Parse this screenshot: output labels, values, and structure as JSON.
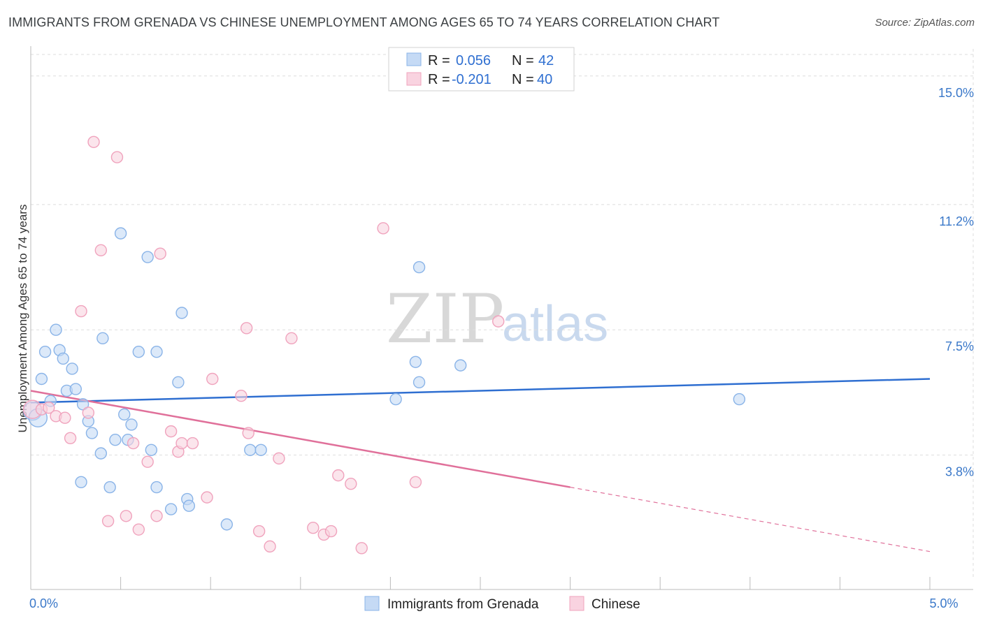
{
  "title": "IMMIGRANTS FROM GRENADA VS CHINESE UNEMPLOYMENT AMONG AGES 65 TO 74 YEARS CORRELATION CHART",
  "source": "Source: ZipAtlas.com",
  "watermark": {
    "zip": "ZIP",
    "atlas": "atlas"
  },
  "legend_top": [
    {
      "r_label": "R = ",
      "r_value": "0.056",
      "n_label": "N = ",
      "n_value": "42"
    },
    {
      "r_label": "R = ",
      "r_value": "-0.201",
      "n_label": "N = ",
      "n_value": "40"
    }
  ],
  "chart_data": {
    "type": "scatter",
    "title": "IMMIGRANTS FROM GRENADA VS CHINESE UNEMPLOYMENT AMONG AGES 65 TO 74 YEARS CORRELATION CHART",
    "xlabel": "",
    "ylabel": "Unemployment Among Ages 65 to 74 years",
    "xlim": [
      0.0,
      5.0
    ],
    "ylim": [
      0.2,
      15.8
    ],
    "x_tick_labels": [
      "0.0%",
      "5.0%"
    ],
    "x_tick_values": [
      0.0,
      5.0
    ],
    "y_tick_labels": [
      "15.0%",
      "11.2%",
      "7.5%",
      "3.8%"
    ],
    "y_tick_values": [
      15.0,
      11.2,
      7.5,
      3.8
    ],
    "series": [
      {
        "name": "Immigrants from Grenada",
        "color": "#8ab4e8",
        "fill": "#c5daf5",
        "line_color": "#2f6fd1",
        "R": 0.056,
        "N": 42,
        "trend": {
          "x0": 0.0,
          "y0": 5.35,
          "x1": 5.0,
          "y1": 6.05
        },
        "points": [
          {
            "x": 0.01,
            "y": 5.1,
            "big": true
          },
          {
            "x": 0.04,
            "y": 4.9,
            "big": true
          },
          {
            "x": 0.06,
            "y": 6.05
          },
          {
            "x": 0.08,
            "y": 6.85
          },
          {
            "x": 0.11,
            "y": 5.4
          },
          {
            "x": 0.14,
            "y": 7.5
          },
          {
            "x": 0.16,
            "y": 6.9
          },
          {
            "x": 0.18,
            "y": 6.65
          },
          {
            "x": 0.2,
            "y": 5.7
          },
          {
            "x": 0.23,
            "y": 6.35
          },
          {
            "x": 0.25,
            "y": 5.75
          },
          {
            "x": 0.29,
            "y": 5.3
          },
          {
            "x": 0.32,
            "y": 4.8
          },
          {
            "x": 0.34,
            "y": 4.45
          },
          {
            "x": 0.4,
            "y": 7.25
          },
          {
            "x": 0.39,
            "y": 3.85
          },
          {
            "x": 0.44,
            "y": 2.85
          },
          {
            "x": 0.47,
            "y": 4.25
          },
          {
            "x": 0.5,
            "y": 10.35
          },
          {
            "x": 0.52,
            "y": 5.0
          },
          {
            "x": 0.54,
            "y": 4.25
          },
          {
            "x": 0.56,
            "y": 4.7
          },
          {
            "x": 0.6,
            "y": 6.85
          },
          {
            "x": 0.65,
            "y": 9.65
          },
          {
            "x": 0.67,
            "y": 3.95
          },
          {
            "x": 0.7,
            "y": 6.85
          },
          {
            "x": 0.7,
            "y": 2.85
          },
          {
            "x": 0.78,
            "y": 2.2
          },
          {
            "x": 0.82,
            "y": 5.95
          },
          {
            "x": 0.84,
            "y": 8.0
          },
          {
            "x": 0.87,
            "y": 2.5
          },
          {
            "x": 0.88,
            "y": 2.3
          },
          {
            "x": 1.09,
            "y": 1.75
          },
          {
            "x": 1.22,
            "y": 3.95
          },
          {
            "x": 1.28,
            "y": 3.95
          },
          {
            "x": 0.28,
            "y": 3.0
          },
          {
            "x": 2.03,
            "y": 5.45
          },
          {
            "x": 2.14,
            "y": 6.55
          },
          {
            "x": 2.16,
            "y": 5.95
          },
          {
            "x": 2.16,
            "y": 9.35
          },
          {
            "x": 2.39,
            "y": 6.45
          },
          {
            "x": 3.94,
            "y": 5.45
          }
        ]
      },
      {
        "name": "Chinese",
        "color": "#f0a3bd",
        "fill": "#f9d3e0",
        "line_color": "#e0709a",
        "R": -0.201,
        "N": 40,
        "trend": {
          "x0": 0.0,
          "y0": 5.7,
          "x1": 3.0,
          "y1": 2.85,
          "dash_to_x": 5.0,
          "dash_to_y": 0.95
        },
        "points": [
          {
            "x": 0.01,
            "y": 5.15,
            "big": true
          },
          {
            "x": 0.06,
            "y": 5.15
          },
          {
            "x": 0.1,
            "y": 5.2
          },
          {
            "x": 0.14,
            "y": 4.95
          },
          {
            "x": 0.19,
            "y": 4.9
          },
          {
            "x": 0.22,
            "y": 4.3
          },
          {
            "x": 0.28,
            "y": 8.05
          },
          {
            "x": 0.32,
            "y": 5.05
          },
          {
            "x": 0.35,
            "y": 13.05
          },
          {
            "x": 0.39,
            "y": 9.85
          },
          {
            "x": 0.43,
            "y": 1.85
          },
          {
            "x": 0.48,
            "y": 12.6
          },
          {
            "x": 0.53,
            "y": 2.0
          },
          {
            "x": 0.57,
            "y": 4.15
          },
          {
            "x": 0.6,
            "y": 1.6
          },
          {
            "x": 0.65,
            "y": 3.6
          },
          {
            "x": 0.7,
            "y": 2.0
          },
          {
            "x": 0.72,
            "y": 9.75
          },
          {
            "x": 0.78,
            "y": 4.5
          },
          {
            "x": 0.82,
            "y": 3.9
          },
          {
            "x": 0.84,
            "y": 4.15
          },
          {
            "x": 0.9,
            "y": 4.15
          },
          {
            "x": 0.98,
            "y": 2.55
          },
          {
            "x": 1.01,
            "y": 6.05
          },
          {
            "x": 1.17,
            "y": 5.55
          },
          {
            "x": 1.2,
            "y": 7.55
          },
          {
            "x": 1.21,
            "y": 4.45
          },
          {
            "x": 1.27,
            "y": 1.55
          },
          {
            "x": 1.33,
            "y": 1.1
          },
          {
            "x": 1.38,
            "y": 3.7
          },
          {
            "x": 1.45,
            "y": 7.25
          },
          {
            "x": 1.57,
            "y": 1.65
          },
          {
            "x": 1.63,
            "y": 1.45
          },
          {
            "x": 1.67,
            "y": 1.55
          },
          {
            "x": 1.71,
            "y": 3.2
          },
          {
            "x": 1.78,
            "y": 2.95
          },
          {
            "x": 1.84,
            "y": 1.05
          },
          {
            "x": 1.96,
            "y": 10.5
          },
          {
            "x": 2.14,
            "y": 3.0
          },
          {
            "x": 2.6,
            "y": 7.75
          }
        ]
      }
    ]
  }
}
